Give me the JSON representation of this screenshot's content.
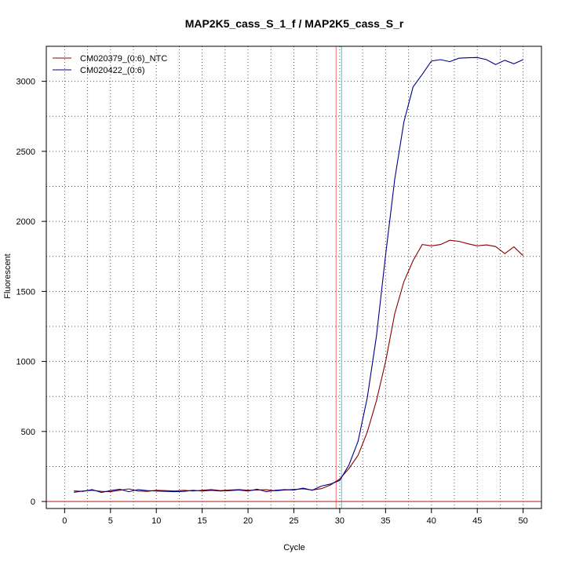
{
  "chart_data": {
    "type": "line",
    "title": "MAP2K5_cass_S_1_f / MAP2K5_cass_S_r",
    "xlabel": "Cycle",
    "ylabel": "Fluorescent",
    "xlim": [
      -2,
      52
    ],
    "ylim": [
      -50,
      3250
    ],
    "xticks": [
      0,
      5,
      10,
      15,
      20,
      25,
      30,
      35,
      40,
      45,
      50
    ],
    "yticks": [
      0,
      500,
      1000,
      1500,
      2000,
      2500,
      3000
    ],
    "grid": true,
    "legend_position": "top-left",
    "x": [
      1,
      2,
      3,
      4,
      5,
      6,
      7,
      8,
      9,
      10,
      11,
      12,
      13,
      14,
      15,
      16,
      17,
      18,
      19,
      20,
      21,
      22,
      23,
      24,
      25,
      26,
      27,
      28,
      29,
      30,
      31,
      32,
      33,
      34,
      35,
      36,
      37,
      38,
      39,
      40,
      41,
      42,
      43,
      44,
      45,
      46,
      47,
      48,
      49,
      50
    ],
    "series": [
      {
        "name": "CM020379_(0:6)_NTC",
        "color": "#8b0000",
        "values": [
          65,
          75,
          80,
          72,
          70,
          80,
          90,
          75,
          72,
          80,
          78,
          75,
          80,
          75,
          80,
          85,
          78,
          82,
          85,
          80,
          82,
          84,
          76,
          82,
          86,
          90,
          82,
          92,
          118,
          160,
          235,
          330,
          495,
          720,
          1000,
          1340,
          1570,
          1720,
          1835,
          1825,
          1835,
          1865,
          1858,
          1840,
          1825,
          1832,
          1820,
          1770,
          1818,
          1755
        ]
      },
      {
        "name": "CM020422_(0:6)",
        "color": "#00008b",
        "values": [
          75,
          72,
          85,
          65,
          78,
          88,
          70,
          85,
          78,
          75,
          72,
          70,
          72,
          80,
          75,
          80,
          75,
          78,
          82,
          75,
          88,
          70,
          80,
          85,
          82,
          95,
          80,
          110,
          125,
          150,
          260,
          430,
          740,
          1180,
          1760,
          2300,
          2710,
          2960,
          3050,
          3145,
          3155,
          3140,
          3165,
          3168,
          3170,
          3155,
          3120,
          3150,
          3125,
          3155
        ]
      }
    ],
    "reference_lines": {
      "vertical": [
        {
          "x": 29.6,
          "color": "#ff6a6a"
        },
        {
          "x": 30.2,
          "color": "#00e5ee"
        }
      ],
      "horizontal": [
        {
          "y": 0,
          "color": "#cd3333"
        }
      ]
    }
  }
}
